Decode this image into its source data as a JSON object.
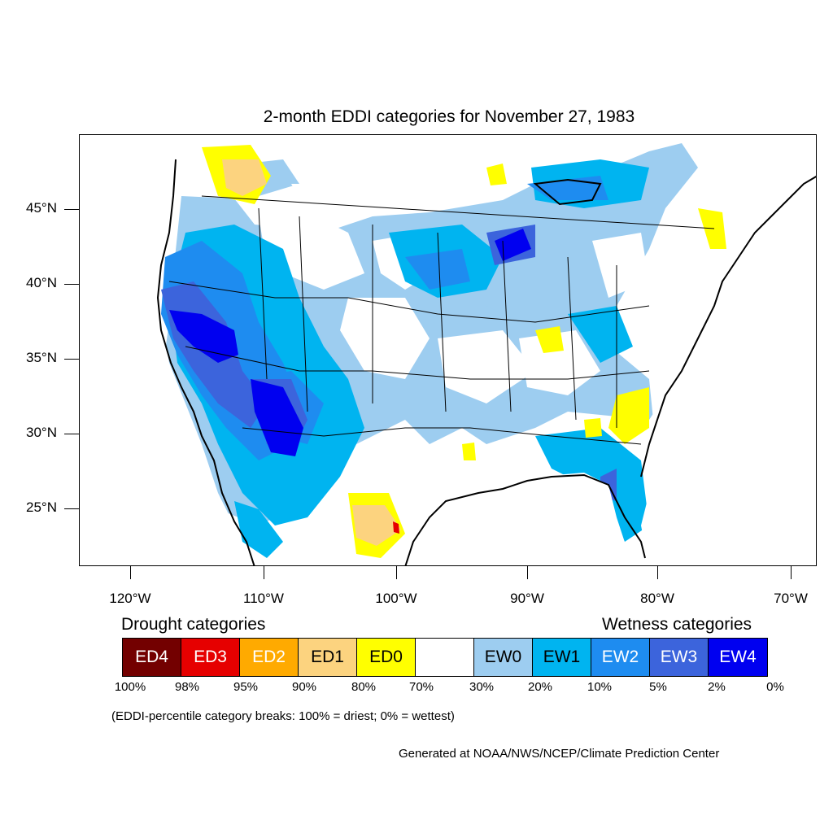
{
  "title": "2-month EDDI categories for November 27, 1983",
  "map": {
    "lat_labels": [
      "45°N",
      "40°N",
      "35°N",
      "30°N",
      "25°N"
    ],
    "lon_labels": [
      "120°W",
      "110°W",
      "100°W",
      "90°W",
      "80°W",
      "70°W"
    ]
  },
  "legend": {
    "drought_title": "Drought categories",
    "wetness_title": "Wetness categories",
    "categories": [
      {
        "label": "ED4",
        "color": "#730000",
        "text_color": "#ffffff"
      },
      {
        "label": "ED3",
        "color": "#e60000",
        "text_color": "#ffffff"
      },
      {
        "label": "ED2",
        "color": "#ffaa00",
        "text_color": "#ffffff"
      },
      {
        "label": "ED1",
        "color": "#fcd37f",
        "text_color": "#000000"
      },
      {
        "label": "ED0",
        "color": "#ffff00",
        "text_color": "#000000"
      },
      {
        "label": "",
        "color": "#ffffff",
        "text_color": "#000000"
      },
      {
        "label": "EW0",
        "color": "#9dcdf0",
        "text_color": "#000000"
      },
      {
        "label": "EW1",
        "color": "#00b4f0",
        "text_color": "#000000"
      },
      {
        "label": "EW2",
        "color": "#1e8cf0",
        "text_color": "#ffffff"
      },
      {
        "label": "EW3",
        "color": "#3c64dc",
        "text_color": "#ffffff"
      },
      {
        "label": "EW4",
        "color": "#0000f0",
        "text_color": "#ffffff"
      }
    ],
    "percentiles": [
      "100%",
      "98%",
      "95%",
      "90%",
      "80%",
      "70%",
      "30%",
      "20%",
      "10%",
      "5%",
      "2%",
      "0%"
    ],
    "note": "(EDDI-percentile category breaks: 100% = driest; 0% = wettest)"
  },
  "credit": "Generated at NOAA/NWS/NCEP/Climate Prediction Center"
}
